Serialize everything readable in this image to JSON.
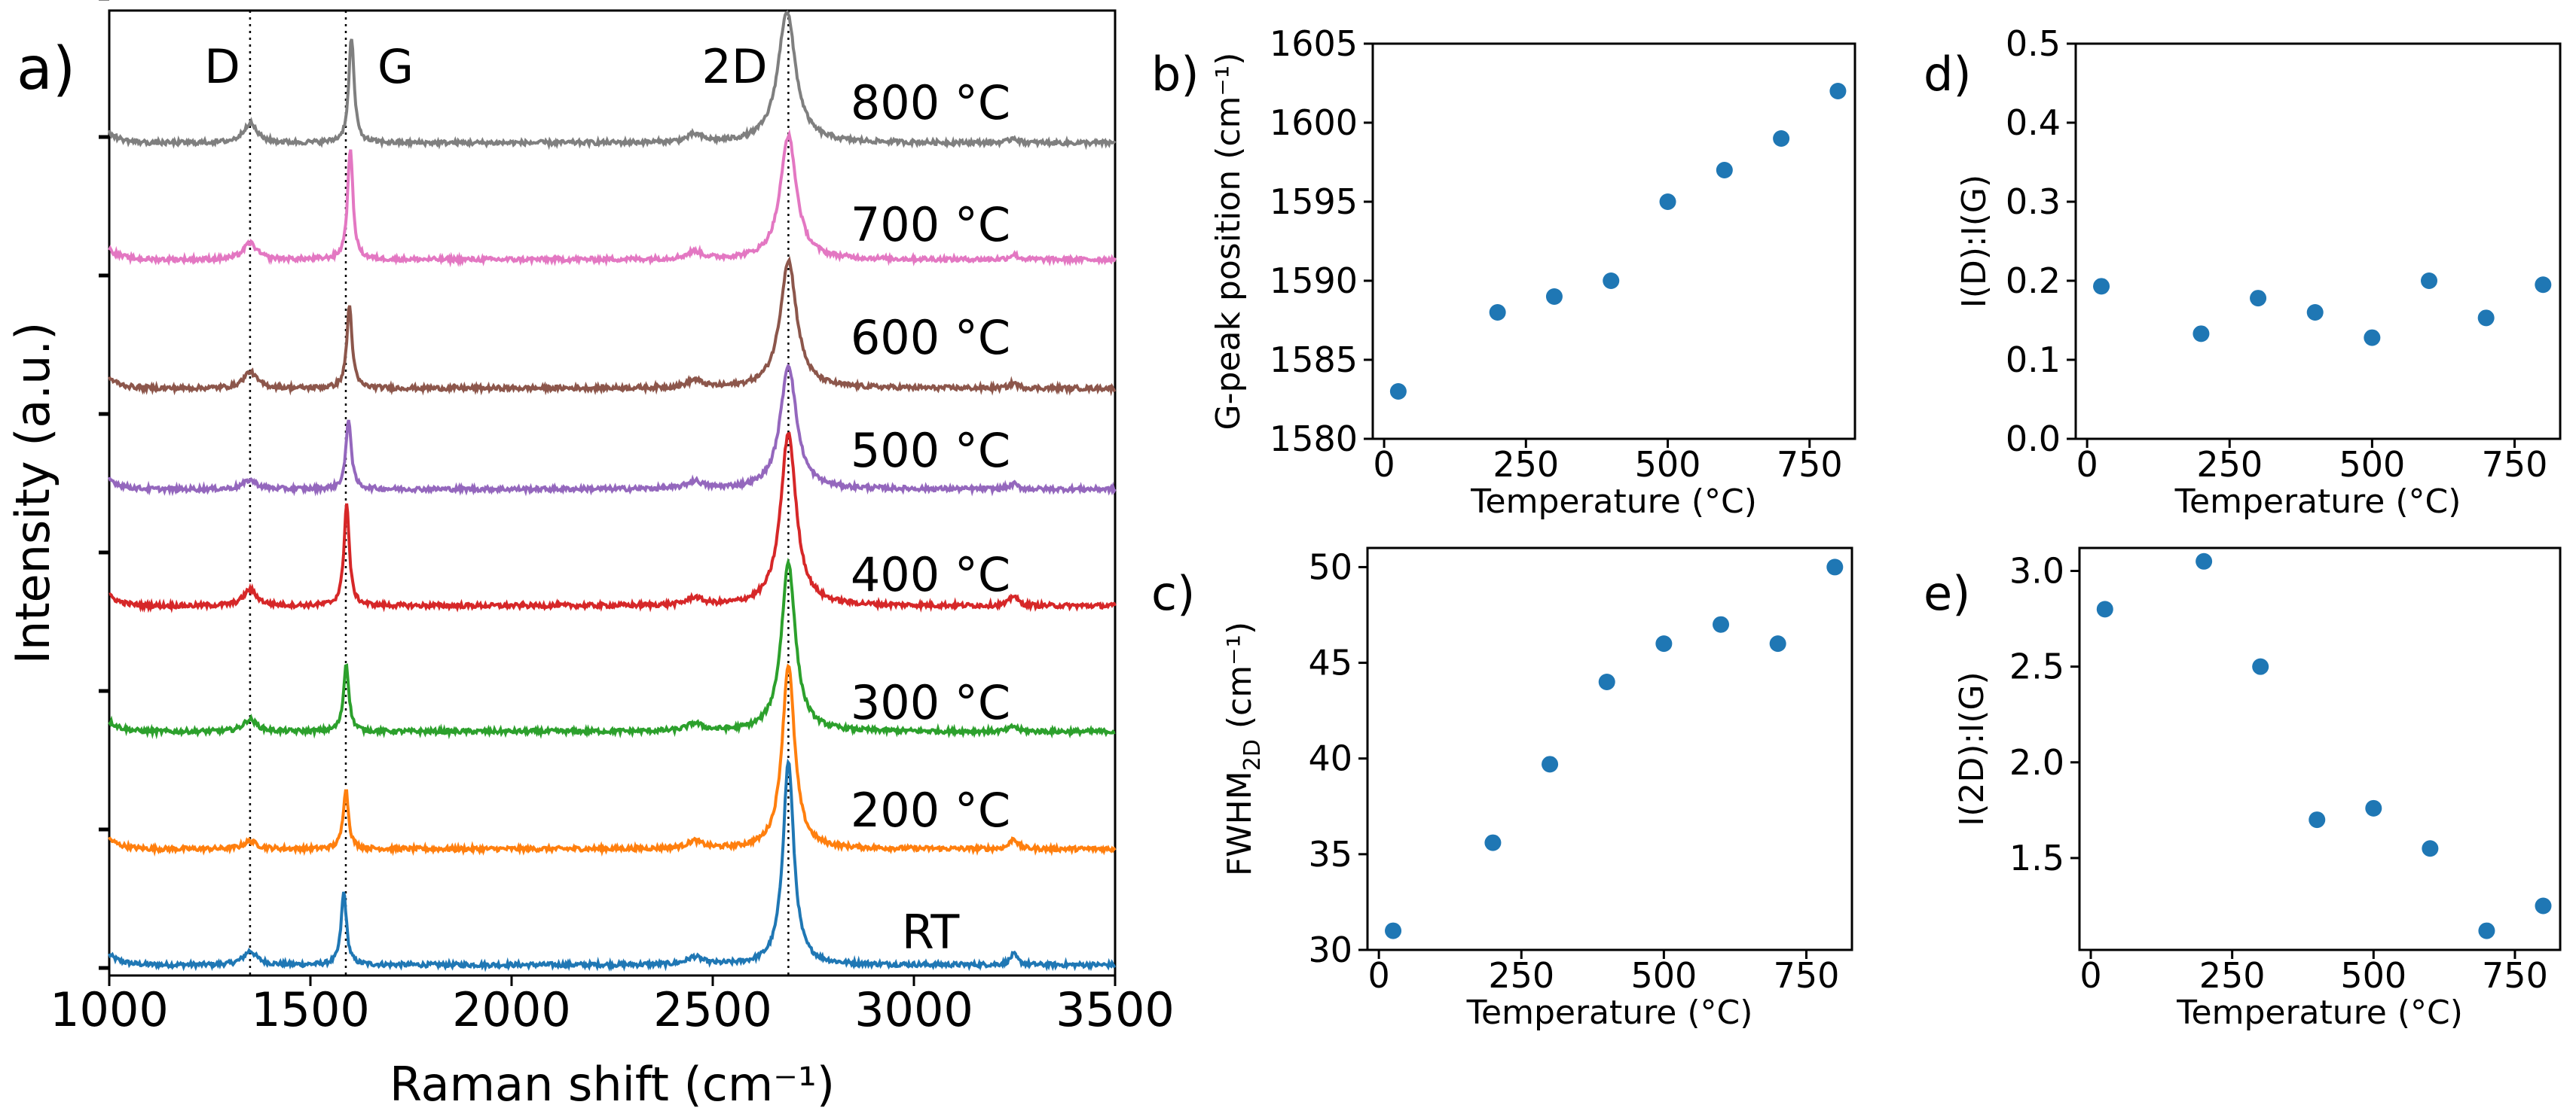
{
  "chart_data": [
    {
      "panel": "a)",
      "type": "line",
      "xlabel": "Raman shift (cm⁻¹)",
      "ylabel": "Intensity (a.u.)",
      "xlim": [
        1000,
        3500
      ],
      "xticks": [
        "1000",
        "1500",
        "2000",
        "2500",
        "3000",
        "3500"
      ],
      "y_tick_count": 8,
      "peaks": [
        {
          "label": "D",
          "x": 1350
        },
        {
          "label": "G",
          "x": 1588
        },
        {
          "label": "2D",
          "x": 2688
        }
      ],
      "series": [
        {
          "name": "RT",
          "color": "#1f77b4",
          "g_pos": 1583,
          "i_d_g": 0.19,
          "i_2d_g": 2.8,
          "fwhm_2d": 31
        },
        {
          "name": "200 °C",
          "color": "#ff7f0e",
          "g_pos": 1588,
          "i_d_g": 0.13,
          "i_2d_g": 3.05,
          "fwhm_2d": 35.6
        },
        {
          "name": "300 °C",
          "color": "#2ca02c",
          "g_pos": 1589,
          "i_d_g": 0.18,
          "i_2d_g": 2.5,
          "fwhm_2d": 39.7
        },
        {
          "name": "400 °C",
          "color": "#d62728",
          "g_pos": 1590,
          "i_d_g": 0.16,
          "i_2d_g": 1.7,
          "fwhm_2d": 44
        },
        {
          "name": "500 °C",
          "color": "#9467bd",
          "g_pos": 1595,
          "i_d_g": 0.13,
          "i_2d_g": 1.76,
          "fwhm_2d": 46
        },
        {
          "name": "600 °C",
          "color": "#8c564b",
          "g_pos": 1597,
          "i_d_g": 0.2,
          "i_2d_g": 1.55,
          "fwhm_2d": 47
        },
        {
          "name": "700 °C",
          "color": "#e377c2",
          "g_pos": 1599,
          "i_d_g": 0.15,
          "i_2d_g": 1.12,
          "fwhm_2d": 46
        },
        {
          "name": "800 °C",
          "color": "#7f7f7f",
          "g_pos": 1602,
          "i_d_g": 0.19,
          "i_2d_g": 1.25,
          "fwhm_2d": 50
        }
      ]
    },
    {
      "panel": "b)",
      "type": "scatter",
      "color": "#1f77b4",
      "xlabel": "Temperature (°C)",
      "ylabel": "G-peak position (cm⁻¹)",
      "xlim": [
        -20,
        830
      ],
      "ylim": [
        1580,
        1605
      ],
      "xticks": [
        0,
        250,
        500,
        750
      ],
      "yticks": [
        1580,
        1585,
        1590,
        1595,
        1600,
        1605
      ],
      "x": [
        25,
        200,
        300,
        400,
        500,
        600,
        700,
        800
      ],
      "y": [
        1583,
        1588,
        1589,
        1590,
        1595,
        1597,
        1599,
        1602
      ]
    },
    {
      "panel": "c)",
      "type": "scatter",
      "color": "#1f77b4",
      "xlabel": "Temperature (°C)",
      "ylabel": "FWHM",
      "ylabel_sub": "2D",
      "ylabel_tail": " (cm⁻¹)",
      "xlim": [
        -20,
        830
      ],
      "ylim": [
        30,
        51
      ],
      "xticks": [
        0,
        250,
        500,
        750
      ],
      "yticks": [
        30,
        35,
        40,
        45,
        50
      ],
      "x": [
        25,
        200,
        300,
        400,
        500,
        600,
        700,
        800
      ],
      "y": [
        31,
        35.6,
        39.7,
        44,
        46,
        47,
        46,
        50
      ]
    },
    {
      "panel": "d)",
      "type": "scatter",
      "color": "#1f77b4",
      "xlabel": "Temperature (°C)",
      "ylabel": "I(D):I(G)",
      "xlim": [
        -20,
        830
      ],
      "ylim": [
        0,
        0.5
      ],
      "xticks": [
        0,
        250,
        500,
        750
      ],
      "yticks": [
        "0.0",
        "0.1",
        "0.2",
        "0.3",
        "0.4",
        "0.5"
      ],
      "x": [
        25,
        200,
        300,
        400,
        500,
        600,
        700,
        800
      ],
      "y": [
        0.193,
        0.133,
        0.178,
        0.16,
        0.128,
        0.2,
        0.153,
        0.195
      ]
    },
    {
      "panel": "e)",
      "type": "scatter",
      "color": "#1f77b4",
      "xlabel": "Temperature (°C)",
      "ylabel": "I(2D):I(G)",
      "xlim": [
        -20,
        830
      ],
      "ylim": [
        1.02,
        3.12
      ],
      "xticks": [
        0,
        250,
        500,
        750
      ],
      "yticks": [
        "1.5",
        "2.0",
        "2.5",
        "3.0"
      ],
      "x": [
        25,
        200,
        300,
        400,
        500,
        600,
        700,
        800
      ],
      "y": [
        2.8,
        3.05,
        2.5,
        1.7,
        1.76,
        1.55,
        1.12,
        1.25
      ]
    }
  ]
}
